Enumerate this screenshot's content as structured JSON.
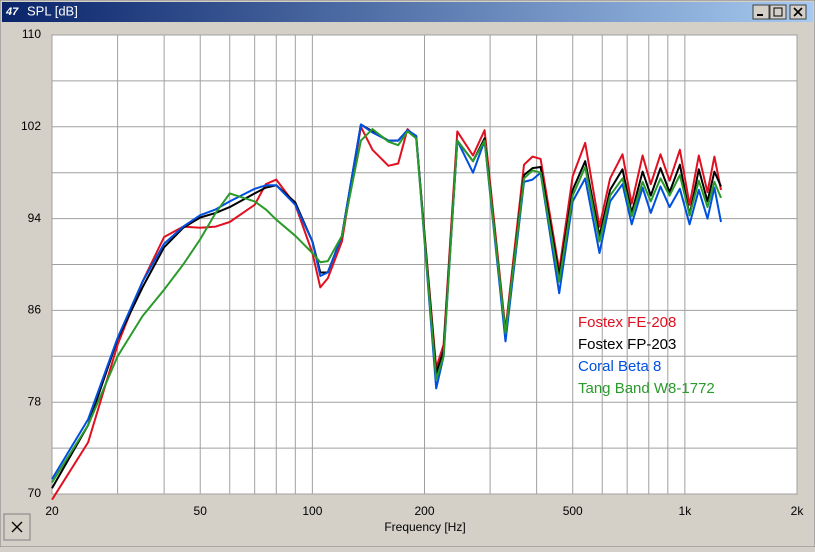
{
  "chart_data": {
    "type": "line",
    "title": "SPL [dB]",
    "xlabel": "Frequency [Hz]",
    "xscale": "log",
    "grid": true,
    "xlim": [
      20,
      2000
    ],
    "xticks": [
      20,
      50,
      100,
      200,
      500,
      {
        "value": 1000,
        "label": "1k"
      },
      {
        "value": 2000,
        "label": "2k"
      }
    ],
    "xgrid": [
      30,
      40,
      60,
      70,
      80,
      90,
      300,
      400,
      600,
      700,
      800,
      900
    ],
    "ylim": [
      70,
      110
    ],
    "yticks": [
      70,
      78,
      86,
      94,
      102,
      110
    ],
    "ygrid": [
      74,
      82,
      90,
      98,
      106
    ],
    "x": [
      20,
      25,
      30,
      35,
      40,
      45,
      50,
      55,
      60,
      70,
      75,
      80,
      90,
      100,
      105,
      110,
      120,
      135,
      145,
      160,
      170,
      180,
      190,
      215,
      225,
      245,
      270,
      290,
      330,
      370,
      390,
      410,
      460,
      500,
      540,
      590,
      630,
      680,
      720,
      770,
      810,
      860,
      910,
      970,
      1030,
      1090,
      1150,
      1200,
      1250
    ],
    "series": [
      {
        "name": "Fostex FE-208",
        "color": "#e01020",
        "values": [
          69.5,
          74.5,
          83,
          88.5,
          92.4,
          93.3,
          93.2,
          93.3,
          93.7,
          95.2,
          97,
          97.4,
          95.2,
          91,
          88,
          88.8,
          92,
          102,
          100,
          98.6,
          98.8,
          101.8,
          101,
          81,
          83,
          101.6,
          99.5,
          101.7,
          84.3,
          98.7,
          99.4,
          99.2,
          89.5,
          97.7,
          100.6,
          93.3,
          97.5,
          99.6,
          95.3,
          99.5,
          97,
          99.6,
          97.3,
          100,
          95.2,
          99.5,
          96.3,
          99.4,
          96.5
        ]
      },
      {
        "name": "Fostex FP-203",
        "color": "#000000",
        "values": [
          70.5,
          76,
          83.5,
          88,
          91.5,
          93.2,
          94.1,
          94.5,
          95,
          96.2,
          96.7,
          96.9,
          95.4,
          92,
          89.3,
          89.3,
          92.5,
          102.2,
          101.6,
          100.8,
          100.8,
          101.7,
          101.2,
          80.5,
          82.5,
          100.8,
          99,
          101,
          84,
          97.8,
          98.4,
          98.5,
          89,
          96.5,
          99,
          92.5,
          96.5,
          98.3,
          94.5,
          98.1,
          96,
          98.4,
          96.3,
          98.7,
          94.3,
          98.3,
          95.5,
          98.1,
          96.8
        ]
      },
      {
        "name": "Coral Beta 8",
        "color": "#0050e0",
        "values": [
          71.3,
          76.5,
          83.6,
          88.5,
          91.8,
          93.3,
          94.3,
          94.8,
          95.5,
          96.6,
          96.9,
          96.9,
          95.2,
          92,
          89,
          89.3,
          92.5,
          102.2,
          101.5,
          100.8,
          100.8,
          101.7,
          101.2,
          79.2,
          82,
          100.8,
          98,
          100.8,
          83.3,
          97.2,
          97.4,
          98,
          87.5,
          95.5,
          97.5,
          91,
          95.5,
          97,
          93.5,
          96.7,
          94.5,
          96.8,
          95,
          96.6,
          93.5,
          96.5,
          94,
          96.7,
          93.7
        ]
      },
      {
        "name": "Tang Band W8-1772",
        "color": "#2a9a2a",
        "values": [
          71,
          76,
          82,
          85.5,
          87.8,
          90,
          92.2,
          94.5,
          96.2,
          95.5,
          94.8,
          93.9,
          92.5,
          91,
          90.2,
          90.3,
          92.5,
          100.8,
          101.8,
          100.7,
          100.4,
          101.6,
          101,
          80,
          82,
          100.8,
          99,
          100.8,
          84,
          97.5,
          98.2,
          98,
          88.5,
          96,
          98.5,
          92,
          96,
          97.5,
          94.2,
          97.2,
          95.5,
          97.5,
          96,
          97.8,
          94.3,
          97.3,
          95,
          97.2,
          95.8
        ]
      }
    ]
  }
}
